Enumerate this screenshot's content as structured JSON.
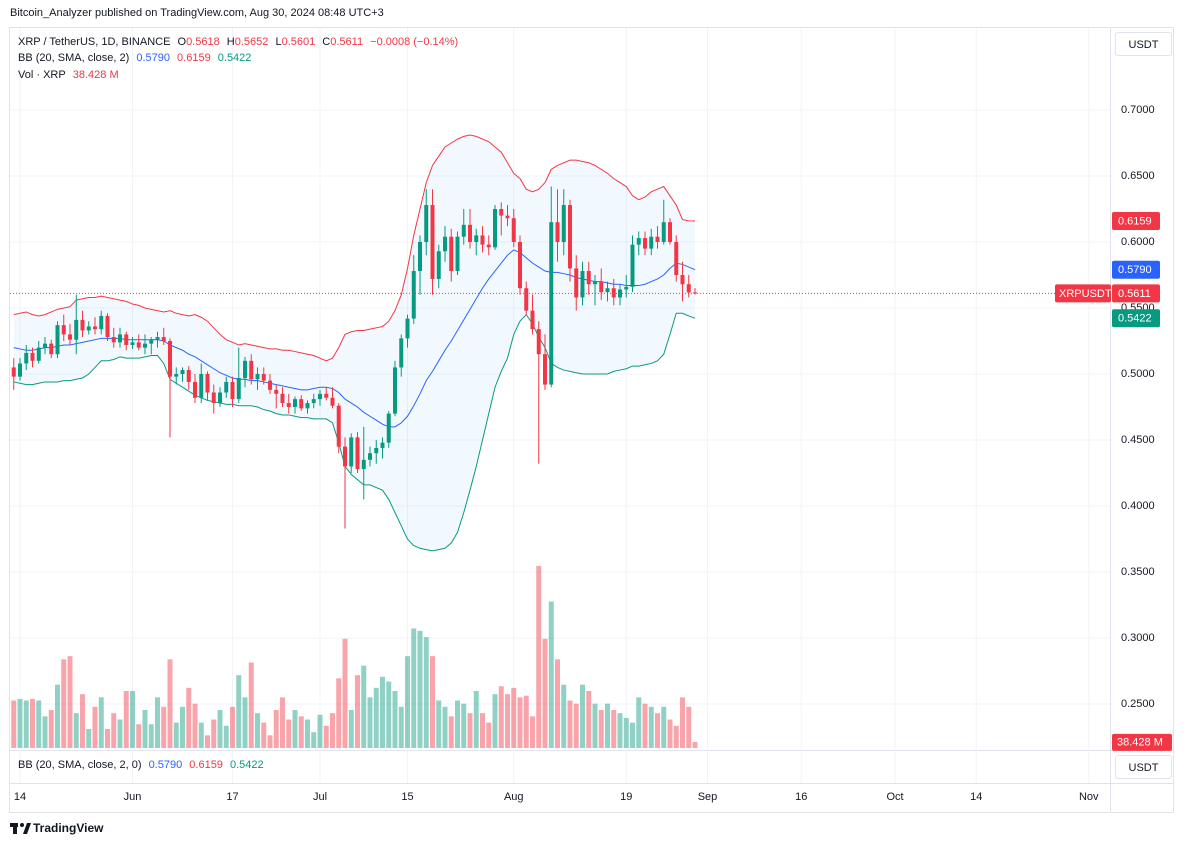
{
  "header": {
    "publisher": "Bitcoin_Analyzer published on TradingView.com, Aug 30, 2024 08:48 UTC+3"
  },
  "footer": "TradingView",
  "chart_data": {
    "type": "candlestick",
    "symbol": "XRP / TetherUS, 1D, BINANCE",
    "ohlc_letters": [
      "O",
      "H",
      "L",
      "C"
    ],
    "change": "−0.0008 (−0.14%)",
    "bb_title": "BB (20, SMA, close, 2)",
    "bb_pane_title": "BB (20, SMA, close, 2, 0)",
    "volume_title": "Vol · XRP",
    "volume_label": "38.428 M",
    "currency": "USDT",
    "symbol_tag": "XRPUSDT",
    "up_color": "#089981",
    "down_color": "#f23645",
    "xlim": [
      -0.6,
      175.4
    ],
    "xticks": [
      {
        "value": 1,
        "label": "14"
      },
      {
        "value": 19,
        "label": "Jun"
      },
      {
        "value": 35,
        "label": "17"
      },
      {
        "value": 49,
        "label": "Jul"
      },
      {
        "value": 63,
        "label": "15"
      },
      {
        "value": 80,
        "label": "Aug"
      },
      {
        "value": 98,
        "label": "19"
      },
      {
        "value": 111,
        "label": "Sep"
      },
      {
        "value": 126,
        "label": "16"
      },
      {
        "value": 141,
        "label": "Oct"
      },
      {
        "value": 154,
        "label": "14"
      },
      {
        "value": 172,
        "label": "Nov"
      }
    ],
    "ylim": [
      0.2152,
      0.7621
    ],
    "yticks": [
      {
        "value": 0.25,
        "label": "0.2500"
      },
      {
        "value": 0.3,
        "label": "0.3000"
      },
      {
        "value": 0.35,
        "label": "0.3500"
      },
      {
        "value": 0.4,
        "label": "0.4000"
      },
      {
        "value": 0.45,
        "label": "0.4500"
      },
      {
        "value": 0.5,
        "label": "0.5000"
      },
      {
        "value": 0.55,
        "label": "0.5500"
      },
      {
        "value": 0.6,
        "label": "0.6000"
      },
      {
        "value": 0.65,
        "label": "0.6500"
      },
      {
        "value": 0.7,
        "label": "0.7000"
      }
    ],
    "grid": true,
    "vlim": [
      0,
      1200
    ],
    "open": [
      0.505,
      0.498,
      0.508,
      0.516,
      0.51,
      0.52,
      0.523,
      0.515,
      0.537,
      0.53,
      0.526,
      0.541,
      0.533,
      0.536,
      0.534,
      0.544,
      0.528,
      0.524,
      0.53,
      0.522,
      0.524,
      0.52,
      0.523,
      0.526,
      0.528,
      0.525,
      0.498,
      0.5,
      0.503,
      0.494,
      0.482,
      0.5,
      0.486,
      0.478,
      0.486,
      0.494,
      0.481,
      0.497,
      0.51,
      0.496,
      0.5,
      0.495,
      0.488,
      0.485,
      0.478,
      0.475,
      0.481,
      0.474,
      0.478,
      0.481,
      0.485,
      0.482,
      0.476,
      0.445,
      0.43,
      0.452,
      0.428,
      0.435,
      0.44,
      0.444,
      0.448,
      0.47,
      0.505,
      0.527,
      0.542,
      0.578,
      0.6,
      0.628,
      0.572,
      0.593,
      0.604,
      0.578,
      0.604,
      0.613,
      0.6,
      0.605,
      0.598,
      0.596,
      0.625,
      0.62,
      0.618,
      0.6,
      0.565,
      0.548,
      0.534,
      0.515,
      0.492,
      0.615,
      0.6,
      0.628,
      0.58,
      0.558,
      0.578,
      0.568,
      0.57,
      0.562,
      0.565,
      0.558,
      0.564,
      0.566,
      0.598,
      0.603,
      0.595,
      0.604,
      0.6,
      0.615,
      0.6,
      0.575,
      0.568,
      0.5618
    ],
    "high": [
      0.512,
      0.512,
      0.522,
      0.52,
      0.525,
      0.528,
      0.526,
      0.54,
      0.545,
      0.538,
      0.56,
      0.548,
      0.54,
      0.543,
      0.548,
      0.546,
      0.535,
      0.535,
      0.532,
      0.528,
      0.53,
      0.53,
      0.528,
      0.532,
      0.535,
      0.527,
      0.505,
      0.505,
      0.506,
      0.5,
      0.508,
      0.502,
      0.492,
      0.49,
      0.498,
      0.498,
      0.52,
      0.513,
      0.515,
      0.505,
      0.505,
      0.5,
      0.492,
      0.49,
      0.485,
      0.483,
      0.484,
      0.48,
      0.485,
      0.488,
      0.49,
      0.49,
      0.478,
      0.452,
      0.455,
      0.456,
      0.46,
      0.445,
      0.45,
      0.452,
      0.472,
      0.51,
      0.53,
      0.545,
      0.59,
      0.605,
      0.64,
      0.64,
      0.598,
      0.612,
      0.61,
      0.608,
      0.625,
      0.625,
      0.61,
      0.612,
      0.605,
      0.628,
      0.63,
      0.628,
      0.625,
      0.605,
      0.57,
      0.56,
      0.54,
      0.53,
      0.642,
      0.64,
      0.64,
      0.632,
      0.59,
      0.585,
      0.585,
      0.575,
      0.58,
      0.57,
      0.572,
      0.568,
      0.575,
      0.605,
      0.608,
      0.608,
      0.61,
      0.612,
      0.632,
      0.618,
      0.605,
      0.585,
      0.575,
      0.5652
    ],
    "low": [
      0.488,
      0.495,
      0.503,
      0.505,
      0.508,
      0.515,
      0.512,
      0.512,
      0.525,
      0.522,
      0.515,
      0.528,
      0.53,
      0.53,
      0.53,
      0.525,
      0.52,
      0.52,
      0.518,
      0.519,
      0.518,
      0.515,
      0.515,
      0.52,
      0.522,
      0.452,
      0.492,
      0.494,
      0.488,
      0.478,
      0.478,
      0.48,
      0.47,
      0.475,
      0.482,
      0.475,
      0.478,
      0.49,
      0.492,
      0.488,
      0.492,
      0.485,
      0.474,
      0.475,
      0.47,
      0.47,
      0.472,
      0.47,
      0.474,
      0.476,
      0.48,
      0.474,
      0.44,
      0.383,
      0.425,
      0.425,
      0.405,
      0.43,
      0.432,
      0.436,
      0.444,
      0.468,
      0.498,
      0.52,
      0.538,
      0.56,
      0.59,
      0.56,
      0.565,
      0.585,
      0.57,
      0.575,
      0.598,
      0.595,
      0.59,
      0.592,
      0.59,
      0.594,
      0.605,
      0.612,
      0.596,
      0.56,
      0.545,
      0.53,
      0.432,
      0.488,
      0.49,
      0.585,
      0.59,
      0.57,
      0.548,
      0.552,
      0.56,
      0.552,
      0.556,
      0.555,
      0.552,
      0.552,
      0.558,
      0.562,
      0.59,
      0.59,
      0.59,
      0.595,
      0.598,
      0.598,
      0.57,
      0.555,
      0.558,
      0.5601
    ],
    "close": [
      0.498,
      0.508,
      0.516,
      0.51,
      0.52,
      0.523,
      0.515,
      0.537,
      0.53,
      0.526,
      0.541,
      0.533,
      0.536,
      0.534,
      0.544,
      0.528,
      0.524,
      0.53,
      0.522,
      0.524,
      0.52,
      0.523,
      0.526,
      0.528,
      0.525,
      0.498,
      0.5,
      0.503,
      0.494,
      0.482,
      0.5,
      0.486,
      0.478,
      0.486,
      0.494,
      0.481,
      0.497,
      0.51,
      0.496,
      0.5,
      0.495,
      0.488,
      0.485,
      0.478,
      0.475,
      0.481,
      0.474,
      0.478,
      0.481,
      0.485,
      0.482,
      0.476,
      0.445,
      0.43,
      0.452,
      0.428,
      0.435,
      0.44,
      0.444,
      0.448,
      0.47,
      0.505,
      0.527,
      0.542,
      0.578,
      0.6,
      0.628,
      0.572,
      0.593,
      0.604,
      0.578,
      0.604,
      0.613,
      0.6,
      0.605,
      0.598,
      0.596,
      0.625,
      0.62,
      0.618,
      0.6,
      0.565,
      0.548,
      0.534,
      0.515,
      0.492,
      0.615,
      0.6,
      0.628,
      0.58,
      0.558,
      0.578,
      0.568,
      0.57,
      0.562,
      0.565,
      0.558,
      0.564,
      0.566,
      0.598,
      0.603,
      0.595,
      0.604,
      0.6,
      0.615,
      0.6,
      0.575,
      0.568,
      0.5618,
      0.5611
    ],
    "volume": [
      300,
      310,
      300,
      310,
      300,
      200,
      240,
      400,
      560,
      580,
      220,
      340,
      120,
      260,
      320,
      120,
      220,
      180,
      360,
      360,
      150,
      240,
      150,
      320,
      260,
      560,
      160,
      260,
      380,
      280,
      160,
      80,
      180,
      240,
      140,
      260,
      460,
      320,
      540,
      220,
      160,
      80,
      240,
      320,
      180,
      240,
      200,
      180,
      100,
      210,
      140,
      220,
      440,
      690,
      240,
      460,
      520,
      320,
      380,
      450,
      420,
      360,
      260,
      580,
      755,
      740,
      700,
      580,
      300,
      260,
      200,
      300,
      280,
      220,
      360,
      220,
      160,
      340,
      390,
      340,
      380,
      320,
      330,
      200,
      1150,
      690,
      925,
      560,
      400,
      300,
      280,
      400,
      360,
      280,
      240,
      280,
      240,
      220,
      190,
      160,
      320,
      280,
      260,
      220,
      260,
      180,
      140,
      320,
      260,
      38.428
    ],
    "bands": [
      {
        "color": "#2962ff",
        "last_label": "0.5790",
        "values": [
          0.52,
          0.519,
          0.518,
          0.518,
          0.519,
          0.52,
          0.52,
          0.521,
          0.522,
          0.522,
          0.523,
          0.524,
          0.525,
          0.526,
          0.527,
          0.527,
          0.527,
          0.527,
          0.526,
          0.526,
          0.526,
          0.526,
          0.526,
          0.526,
          0.525,
          0.522,
          0.52,
          0.518,
          0.515,
          0.513,
          0.51,
          0.507,
          0.504,
          0.501,
          0.499,
          0.497,
          0.496,
          0.496,
          0.495,
          0.495,
          0.494,
          0.493,
          0.492,
          0.491,
          0.49,
          0.489,
          0.488,
          0.488,
          0.489,
          0.49,
          0.49,
          0.489,
          0.486,
          0.481,
          0.478,
          0.475,
          0.471,
          0.468,
          0.465,
          0.462,
          0.46,
          0.46,
          0.463,
          0.468,
          0.476,
          0.485,
          0.495,
          0.502,
          0.51,
          0.518,
          0.525,
          0.533,
          0.541,
          0.549,
          0.557,
          0.565,
          0.572,
          0.578,
          0.584,
          0.59,
          0.594,
          0.592,
          0.588,
          0.584,
          0.581,
          0.578,
          0.577,
          0.577,
          0.576,
          0.575,
          0.573,
          0.572,
          0.571,
          0.57,
          0.57,
          0.569,
          0.568,
          0.568,
          0.567,
          0.567,
          0.567,
          0.568,
          0.57,
          0.572,
          0.575,
          0.58,
          0.584,
          0.583,
          0.581,
          0.579
        ]
      },
      {
        "color": "#f23645",
        "last_label": "0.6159",
        "values": [
          0.545,
          0.546,
          0.547,
          0.545,
          0.544,
          0.545,
          0.547,
          0.549,
          0.55,
          0.551,
          0.556,
          0.557,
          0.558,
          0.558,
          0.559,
          0.558,
          0.557,
          0.556,
          0.555,
          0.553,
          0.552,
          0.55,
          0.549,
          0.548,
          0.547,
          0.548,
          0.546,
          0.545,
          0.544,
          0.545,
          0.543,
          0.54,
          0.535,
          0.53,
          0.526,
          0.524,
          0.522,
          0.523,
          0.522,
          0.521,
          0.52,
          0.519,
          0.519,
          0.518,
          0.518,
          0.517,
          0.516,
          0.515,
          0.514,
          0.512,
          0.51,
          0.512,
          0.52,
          0.53,
          0.532,
          0.533,
          0.533,
          0.534,
          0.535,
          0.536,
          0.54,
          0.548,
          0.56,
          0.58,
          0.605,
          0.625,
          0.645,
          0.658,
          0.665,
          0.672,
          0.675,
          0.678,
          0.68,
          0.681,
          0.68,
          0.678,
          0.676,
          0.672,
          0.668,
          0.66,
          0.652,
          0.648,
          0.64,
          0.638,
          0.64,
          0.645,
          0.655,
          0.658,
          0.66,
          0.662,
          0.662,
          0.661,
          0.66,
          0.658,
          0.655,
          0.652,
          0.648,
          0.645,
          0.642,
          0.635,
          0.632,
          0.634,
          0.638,
          0.64,
          0.642,
          0.635,
          0.628,
          0.617,
          0.616,
          0.6159
        ]
      },
      {
        "color": "#089981",
        "last_label": "0.5422",
        "values": [
          0.494,
          0.493,
          0.492,
          0.492,
          0.493,
          0.494,
          0.494,
          0.494,
          0.495,
          0.495,
          0.496,
          0.497,
          0.5,
          0.505,
          0.51,
          0.51,
          0.511,
          0.513,
          0.512,
          0.512,
          0.512,
          0.513,
          0.514,
          0.514,
          0.508,
          0.496,
          0.493,
          0.49,
          0.487,
          0.484,
          0.482,
          0.48,
          0.479,
          0.478,
          0.477,
          0.477,
          0.476,
          0.476,
          0.476,
          0.475,
          0.473,
          0.472,
          0.47,
          0.469,
          0.469,
          0.468,
          0.467,
          0.467,
          0.466,
          0.466,
          0.466,
          0.463,
          0.448,
          0.43,
          0.424,
          0.42,
          0.416,
          0.416,
          0.414,
          0.412,
          0.405,
          0.395,
          0.385,
          0.375,
          0.37,
          0.368,
          0.367,
          0.366,
          0.367,
          0.368,
          0.372,
          0.38,
          0.395,
          0.412,
          0.43,
          0.45,
          0.47,
          0.49,
          0.502,
          0.512,
          0.53,
          0.54,
          0.545,
          0.538,
          0.528,
          0.52,
          0.508,
          0.505,
          0.503,
          0.502,
          0.501,
          0.5,
          0.5,
          0.5,
          0.5,
          0.5,
          0.502,
          0.503,
          0.504,
          0.506,
          0.506,
          0.507,
          0.508,
          0.51,
          0.515,
          0.53,
          0.546,
          0.546,
          0.544,
          0.5422
        ]
      }
    ]
  }
}
